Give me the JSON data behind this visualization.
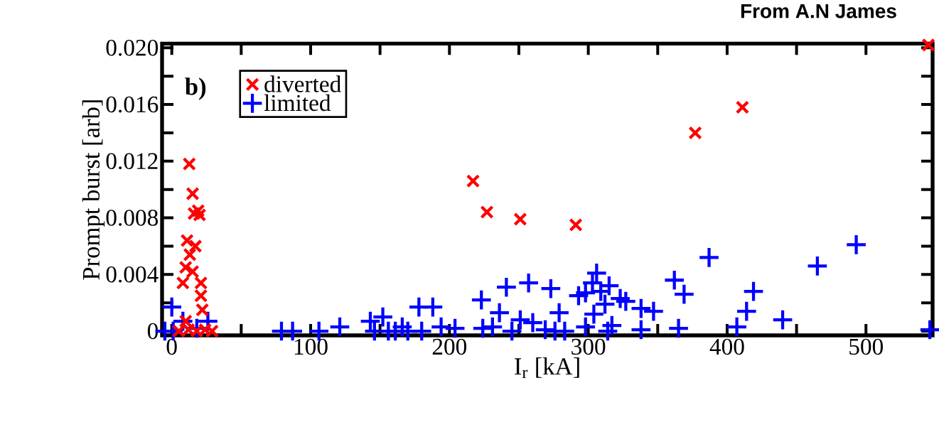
{
  "chart_data": {
    "type": "scatter",
    "xlabel": "I$_{r}$ [kA]",
    "ylabel": "Prompt burst [arb]",
    "annotations": [
      "b)",
      "From A.N James"
    ],
    "xlim": [
      -7,
      548
    ],
    "ylim": [
      -0.0003,
      0.0203
    ],
    "xticks": [
      0,
      {
        "value": 50,
        "label": null
      },
      100,
      {
        "value": 150,
        "label": null
      },
      200,
      {
        "value": 250,
        "label": null
      },
      300,
      {
        "value": 350,
        "label": null
      },
      400,
      {
        "value": 450,
        "label": null
      },
      500
    ],
    "yticks": [
      {
        "value": 0,
        "label": "0"
      },
      {
        "value": 0.002,
        "label": null
      },
      {
        "value": 0.004,
        "label": "0.004"
      },
      {
        "value": 0.006,
        "label": null
      },
      {
        "value": 0.008,
        "label": "0.008"
      },
      {
        "value": 0.01,
        "label": null
      },
      {
        "value": 0.012,
        "label": "0.012"
      },
      {
        "value": 0.014,
        "label": null
      },
      {
        "value": 0.016,
        "label": "0.016"
      },
      {
        "value": 0.018,
        "label": null
      },
      {
        "value": 0.02,
        "label": "0.020"
      }
    ],
    "grid": false,
    "legend": "top left",
    "series": [
      {
        "name": "diverted",
        "color": "#ff0000",
        "x": [
          217,
          227,
          251,
          291,
          377,
          411,
          545,
          12.6,
          15,
          19,
          20,
          16,
          11,
          17,
          13,
          10,
          15,
          8,
          21,
          21,
          22,
          10,
          5,
          12,
          18,
          24,
          29
        ],
        "values": [
          0.0106,
          0.0084,
          0.0079,
          0.0075,
          0.014,
          0.0158,
          0.0202,
          0.0118,
          0.0097,
          0.0085,
          0.0082,
          0.0083,
          0.0064,
          0.006,
          0.0054,
          0.0045,
          0.0042,
          0.0034,
          0.0034,
          0.0025,
          0.0015,
          0.0007,
          0,
          0.0001,
          0,
          0.0001,
          0
        ]
      },
      {
        "name": "limited",
        "color": "#0000ff",
        "marker": "cross",
        "x": [
          0,
          -5,
          1,
          26,
          18,
          8,
          79,
          87,
          106,
          121,
          152,
          146,
          156,
          161,
          170,
          178,
          188,
          180,
          194,
          204,
          223,
          231,
          241,
          257,
          236,
          251,
          224,
          143,
          166,
          245,
          273,
          279,
          260,
          269,
          276,
          283,
          306,
          303,
          298,
          309,
          315,
          293,
          323,
          327,
          312,
          304,
          298,
          314,
          317,
          338,
          347,
          338,
          362,
          369,
          365,
          387,
          419,
          414,
          407,
          440,
          465,
          493,
          546
        ],
        "values": [
          0.0017,
          0,
          0,
          0.0007,
          0.0002,
          0.0007,
          0,
          0,
          0,
          0.0003,
          0.001,
          0,
          0,
          0,
          0,
          0.0017,
          0.0017,
          0,
          0.0003,
          0.0002,
          0.0022,
          0.0003,
          0.0031,
          0.0034,
          0.0013,
          0.0008,
          0.0002,
          0.0007,
          0.0003,
          0,
          0.003,
          0.0013,
          0.0006,
          0.0001,
          0,
          0,
          0.0041,
          0.0034,
          0.0027,
          0.0028,
          0.0032,
          0.0025,
          0.0023,
          0.0021,
          0.0019,
          0.0012,
          0.0003,
          0,
          0.0004,
          0.0016,
          0.0014,
          0.0001,
          0.0036,
          0.0026,
          0.0002,
          0.0052,
          0.0028,
          0.0014,
          0.0003,
          0.0008,
          0.0046,
          0.0061,
          0.0001
        ]
      }
    ]
  }
}
